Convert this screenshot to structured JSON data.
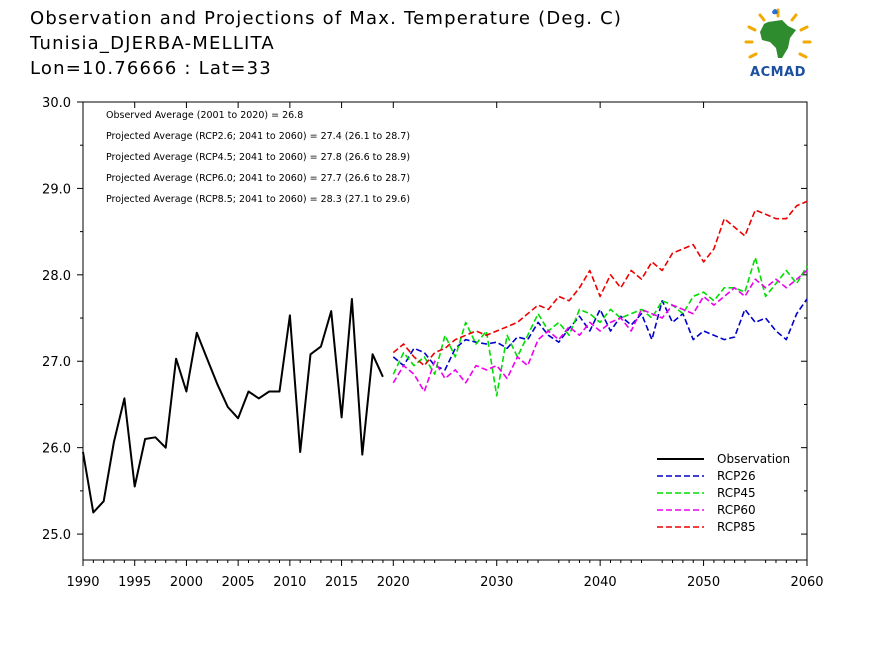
{
  "header": {
    "line1": "Observation and Projections of Max. Temperature (Deg. C)",
    "line2": "Tunisia_DJERBA-MELLITA",
    "line3": "Lon=10.76666 : Lat=33"
  },
  "logo": {
    "text": "ACMAD",
    "icon": "acmad-africa-sun-logo"
  },
  "colors": {
    "Observation": "#000000",
    "RCP26": "#0000cc",
    "RCP45": "#00dd00",
    "RCP60": "#ee00ee",
    "RCP85": "#ee0000"
  },
  "chart_data": {
    "type": "line",
    "xlim": [
      1990,
      2060
    ],
    "ylim": [
      24.7,
      30.0
    ],
    "xticks": [
      "1990",
      "1995",
      "2000",
      "2005",
      "2010",
      "2015",
      "2020",
      "2030",
      "2040",
      "2050",
      "2060"
    ],
    "yticks": [
      "25.0",
      "26.0",
      "27.0",
      "28.0",
      "29.0",
      "30.0"
    ],
    "legend_position": "bottom-right",
    "annotations": [
      "Observed Average (2001 to 2020) = 26.8",
      "Projected Average (RCP2.6; 2041 to 2060) = 27.4 (26.1 to 28.7)",
      "Projected Average (RCP4.5; 2041 to 2060) = 27.8 (26.6 to 28.9)",
      "Projected Average (RCP6.0; 2041 to 2060) = 27.7 (26.6 to 28.7)",
      "Projected Average (RCP8.5; 2041 to 2060) = 28.3 (27.1 to 29.6)"
    ],
    "series": [
      {
        "name": "Observation",
        "style": "solid",
        "x": [
          1990,
          1991,
          1992,
          1993,
          1994,
          1995,
          1996,
          1997,
          1998,
          1999,
          2000,
          2001,
          2002,
          2003,
          2004,
          2005,
          2006,
          2007,
          2008,
          2009,
          2010,
          2011,
          2012,
          2013,
          2014,
          2015,
          2016,
          2017,
          2018,
          2019
        ],
        "y": [
          25.95,
          25.25,
          25.38,
          26.07,
          26.57,
          25.55,
          26.1,
          26.12,
          26.0,
          27.03,
          26.65,
          27.33,
          27.03,
          26.73,
          26.47,
          26.34,
          26.65,
          26.57,
          26.65,
          26.65,
          27.53,
          25.95,
          27.08,
          27.17,
          27.58,
          26.35,
          27.72,
          25.92,
          27.08,
          26.82
        ]
      },
      {
        "name": "RCP26",
        "style": "dashed",
        "x": [
          2020,
          2021,
          2022,
          2023,
          2024,
          2025,
          2026,
          2027,
          2028,
          2029,
          2030,
          2031,
          2032,
          2033,
          2034,
          2035,
          2036,
          2037,
          2038,
          2039,
          2040,
          2041,
          2042,
          2043,
          2044,
          2045,
          2046,
          2047,
          2048,
          2049,
          2050,
          2051,
          2052,
          2053,
          2054,
          2055,
          2056,
          2057,
          2058,
          2059,
          2060
        ],
        "y": [
          27.05,
          26.95,
          27.15,
          27.1,
          26.95,
          26.9,
          27.15,
          27.25,
          27.22,
          27.2,
          27.22,
          27.15,
          27.28,
          27.25,
          27.45,
          27.3,
          27.22,
          27.38,
          27.52,
          27.35,
          27.6,
          27.35,
          27.52,
          27.42,
          27.55,
          27.25,
          27.7,
          27.45,
          27.55,
          27.25,
          27.35,
          27.3,
          27.25,
          27.28,
          27.6,
          27.45,
          27.5,
          27.35,
          27.25,
          27.55,
          27.72
        ]
      },
      {
        "name": "RCP45",
        "style": "dashed",
        "x": [
          2020,
          2021,
          2022,
          2023,
          2024,
          2025,
          2026,
          2027,
          2028,
          2029,
          2030,
          2031,
          2032,
          2033,
          2034,
          2035,
          2036,
          2037,
          2038,
          2039,
          2040,
          2041,
          2042,
          2043,
          2044,
          2045,
          2046,
          2047,
          2048,
          2049,
          2050,
          2051,
          2052,
          2053,
          2054,
          2055,
          2056,
          2057,
          2058,
          2059,
          2060
        ],
        "y": [
          26.85,
          27.1,
          26.95,
          27.05,
          26.85,
          27.3,
          27.05,
          27.45,
          27.2,
          27.35,
          26.6,
          27.3,
          27.05,
          27.3,
          27.55,
          27.35,
          27.45,
          27.3,
          27.6,
          27.55,
          27.45,
          27.6,
          27.5,
          27.55,
          27.6,
          27.5,
          27.7,
          27.65,
          27.55,
          27.75,
          27.8,
          27.7,
          27.85,
          27.85,
          27.8,
          28.2,
          27.75,
          27.9,
          28.05,
          27.9,
          28.1
        ]
      },
      {
        "name": "RCP60",
        "style": "dashed",
        "x": [
          2020,
          2021,
          2022,
          2023,
          2024,
          2025,
          2026,
          2027,
          2028,
          2029,
          2030,
          2031,
          2032,
          2033,
          2034,
          2035,
          2036,
          2037,
          2038,
          2039,
          2040,
          2041,
          2042,
          2043,
          2044,
          2045,
          2046,
          2047,
          2048,
          2049,
          2050,
          2051,
          2052,
          2053,
          2054,
          2055,
          2056,
          2057,
          2058,
          2059,
          2060
        ],
        "y": [
          26.75,
          26.95,
          26.85,
          26.65,
          27.0,
          26.8,
          26.9,
          26.75,
          26.95,
          26.9,
          26.95,
          26.8,
          27.05,
          26.95,
          27.25,
          27.35,
          27.25,
          27.4,
          27.3,
          27.45,
          27.35,
          27.45,
          27.5,
          27.35,
          27.6,
          27.55,
          27.5,
          27.65,
          27.6,
          27.55,
          27.75,
          27.65,
          27.75,
          27.85,
          27.75,
          27.95,
          27.85,
          27.95,
          27.85,
          27.95,
          28.05
        ]
      },
      {
        "name": "RCP85",
        "style": "dashed",
        "x": [
          2020,
          2021,
          2022,
          2023,
          2024,
          2025,
          2026,
          2027,
          2028,
          2029,
          2030,
          2031,
          2032,
          2033,
          2034,
          2035,
          2036,
          2037,
          2038,
          2039,
          2040,
          2041,
          2042,
          2043,
          2044,
          2045,
          2046,
          2047,
          2048,
          2049,
          2050,
          2051,
          2052,
          2053,
          2054,
          2055,
          2056,
          2057,
          2058,
          2059,
          2060
        ],
        "y": [
          27.1,
          27.2,
          27.05,
          26.95,
          27.1,
          27.15,
          27.25,
          27.3,
          27.35,
          27.3,
          27.35,
          27.4,
          27.45,
          27.55,
          27.65,
          27.6,
          27.75,
          27.7,
          27.85,
          28.05,
          27.75,
          28.0,
          27.85,
          28.05,
          27.95,
          28.15,
          28.05,
          28.25,
          28.3,
          28.35,
          28.15,
          28.3,
          28.65,
          28.55,
          28.45,
          28.75,
          28.7,
          28.65,
          28.65,
          28.8,
          28.85
        ]
      }
    ]
  }
}
